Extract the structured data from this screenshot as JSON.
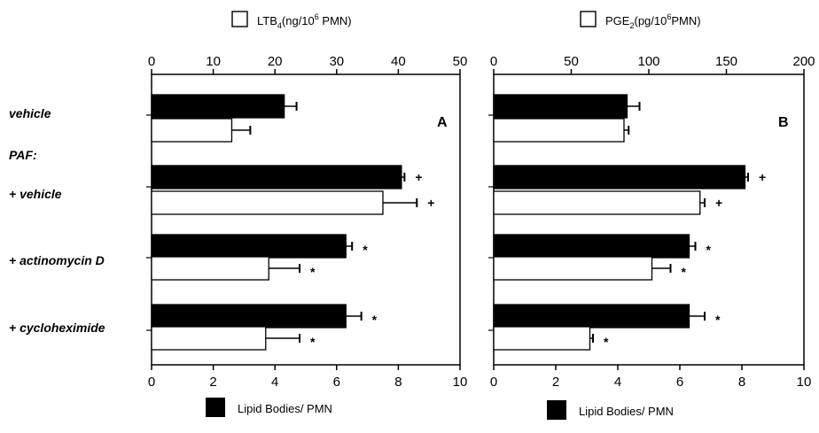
{
  "row_labels": [
    "vehicle",
    "PAF:",
    "+ vehicle",
    "+ actinomycin D",
    "+ cycloheximide"
  ],
  "chart_data": [
    {
      "type": "bar",
      "panel_label": "A",
      "categories": [
        "vehicle",
        "+ vehicle",
        "+ actinomycin D",
        "+ cycloheximide"
      ],
      "top_axis": {
        "range": [
          0,
          50
        ],
        "ticks": [
          0,
          10,
          20,
          30,
          40,
          50
        ]
      },
      "bottom_axis": {
        "range": [
          0,
          10
        ],
        "ticks": [
          0,
          2,
          4,
          6,
          8,
          10
        ]
      },
      "legend_top": {
        "prefix": "LTB",
        "sub": "4",
        "mid": "(ng/10",
        "sup": "6",
        "suffix": " PMN)"
      },
      "legend_bottom": "Lipid Bodies/ PMN",
      "series": [
        {
          "name": "Lipid Bodies/ PMN",
          "axis": "bottom",
          "color": "#000000",
          "values": [
            4.3,
            8.1,
            6.3,
            6.3
          ],
          "errors": [
            0.4,
            0.1,
            0.2,
            0.5
          ],
          "marks": [
            "",
            "+",
            "*",
            "*"
          ]
        },
        {
          "name": "LTB4",
          "axis": "top",
          "color": "#ffffff",
          "values": [
            13,
            37.5,
            19,
            18.5
          ],
          "errors": [
            3,
            5.5,
            5,
            5.5
          ],
          "marks": [
            "",
            "+",
            "*",
            "*"
          ]
        }
      ]
    },
    {
      "type": "bar",
      "panel_label": "B",
      "categories": [
        "vehicle",
        "+ vehicle",
        "+ actinomycin D",
        "+ cycloheximide"
      ],
      "top_axis": {
        "range": [
          0,
          200
        ],
        "ticks": [
          0,
          50,
          100,
          150,
          200
        ]
      },
      "bottom_axis": {
        "range": [
          0,
          10
        ],
        "ticks": [
          0,
          2,
          4,
          6,
          8,
          10
        ]
      },
      "legend_top": {
        "prefix": "PGE",
        "sub": "2",
        "mid": "(pg/10",
        "sup": "6",
        "suffix": "PMN)"
      },
      "legend_bottom": "Lipid Bodies/ PMN",
      "series": [
        {
          "name": "Lipid Bodies/ PMN",
          "axis": "bottom",
          "color": "#000000",
          "values": [
            4.3,
            8.1,
            6.3,
            6.3
          ],
          "errors": [
            0.4,
            0.1,
            0.2,
            0.5
          ],
          "marks": [
            "",
            "+",
            "*",
            "*"
          ]
        },
        {
          "name": "PGE2",
          "axis": "top",
          "color": "#ffffff",
          "values": [
            84,
            133,
            102,
            62
          ],
          "errors": [
            3,
            3,
            12,
            2
          ],
          "marks": [
            "",
            "+",
            "*",
            "*"
          ]
        }
      ]
    }
  ]
}
